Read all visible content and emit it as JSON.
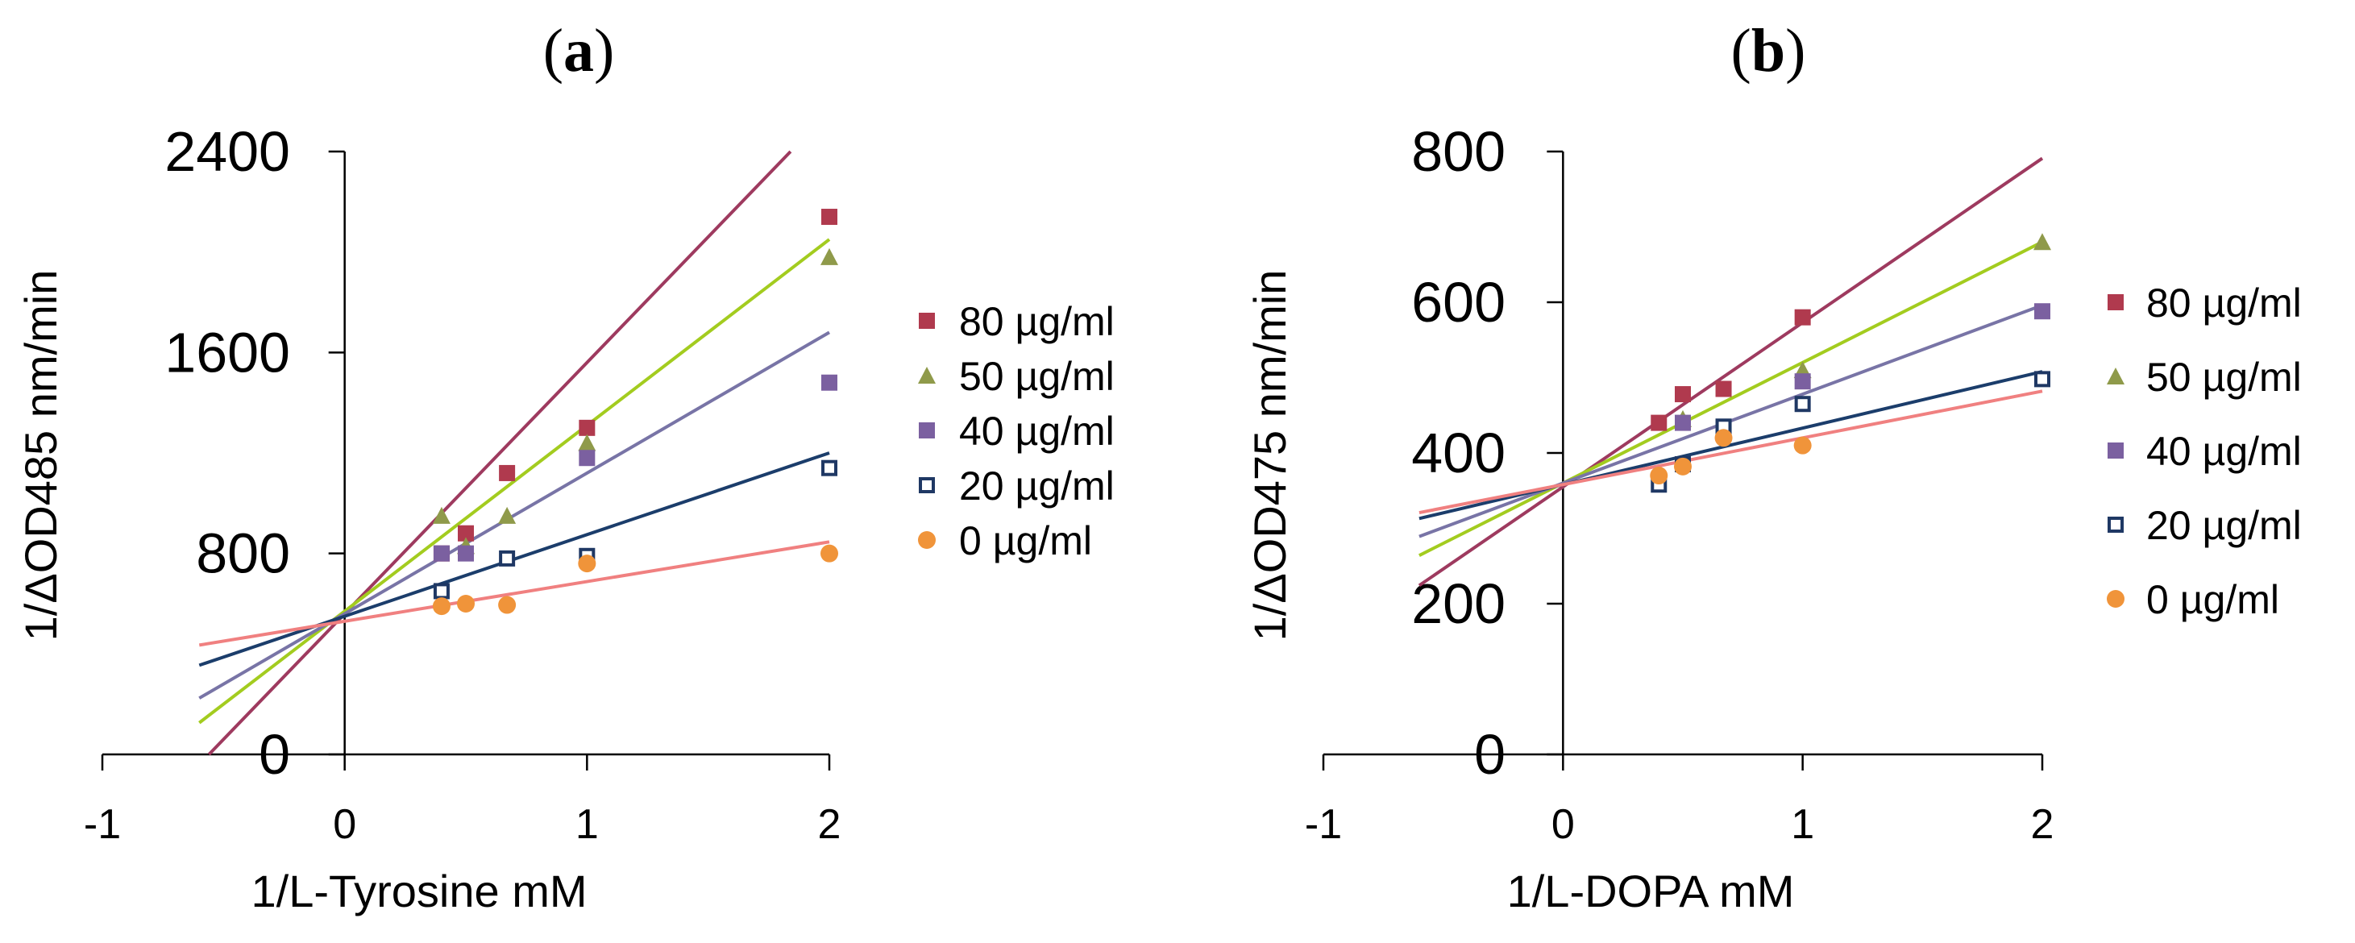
{
  "chart_data": [
    {
      "id": "a",
      "type": "scatter",
      "panel_label": "a",
      "title_open": "(",
      "title_close": ")",
      "xlabel": "1/L-Tyrosine mM",
      "ylabel": "1/ΔOD485 nm/min",
      "xlim": [
        -1,
        2
      ],
      "ylim": [
        0,
        2400
      ],
      "xticks": [
        -1,
        0,
        1,
        2
      ],
      "yticks": [
        0,
        800,
        1600,
        2400
      ],
      "xtick_labels": [
        "-1",
        "0",
        "1",
        "2"
      ],
      "ytick_labels": [
        "0",
        "800",
        "1600",
        "2400"
      ],
      "legend_position": "right",
      "series": [
        {
          "name": "80 µg/ml",
          "marker": "square-filled",
          "color": "#b03a4e",
          "x": [
            0.4,
            0.5,
            0.67,
            1,
            2
          ],
          "y": [
            800,
            880,
            1120,
            1300,
            2140
          ],
          "fit": {
            "slope": 1000,
            "intercept": 560,
            "x_range": [
              -0.58,
              2
            ]
          }
        },
        {
          "name": "50 µg/ml",
          "marker": "triangle-filled",
          "color": "#8f9a4a",
          "x": [
            0.4,
            0.5,
            0.67,
            1,
            2
          ],
          "y": [
            950,
            830,
            950,
            1240,
            1980
          ],
          "fit": {
            "slope": 740,
            "intercept": 570,
            "x_range": [
              -0.6,
              2
            ]
          }
        },
        {
          "name": "40 µg/ml",
          "marker": "square-filled",
          "color": "#7b60a0",
          "x": [
            0.4,
            0.5,
            1,
            2
          ],
          "y": [
            800,
            800,
            1180,
            1480
          ],
          "fit": {
            "slope": 560,
            "intercept": 560,
            "x_range": [
              -0.6,
              2
            ]
          }
        },
        {
          "name": "20 µg/ml",
          "marker": "square-open",
          "color": "#1f3864",
          "x": [
            0.4,
            0.67,
            1,
            2
          ],
          "y": [
            650,
            780,
            790,
            1140
          ],
          "fit": {
            "slope": 325,
            "intercept": 550,
            "x_range": [
              -0.6,
              2
            ]
          }
        },
        {
          "name": "0 µg/ml",
          "marker": "circle-filled",
          "color": "#f0943a",
          "x": [
            0.4,
            0.5,
            0.67,
            1,
            2
          ],
          "y": [
            590,
            600,
            595,
            760,
            800
          ],
          "fit": {
            "slope": 158,
            "intercept": 530,
            "x_range": [
              -0.6,
              2
            ]
          }
        }
      ],
      "fit_line_colors": [
        "#9e3a5f",
        "#a3cc1f",
        "#7874a6",
        "#1b3d6b",
        "#f08080"
      ]
    },
    {
      "id": "b",
      "type": "scatter",
      "panel_label": "b",
      "title_open": "(",
      "title_close": ")",
      "xlabel": "1/L-DOPA mM",
      "ylabel": "1/ΔOD475 nm/min",
      "xlim": [
        -1,
        2
      ],
      "ylim": [
        0,
        800
      ],
      "xticks": [
        -1,
        0,
        1,
        2
      ],
      "yticks": [
        0,
        200,
        400,
        600,
        800
      ],
      "xtick_labels": [
        "-1",
        "0",
        "1",
        "2"
      ],
      "ytick_labels": [
        "0",
        "200",
        "400",
        "600",
        "800"
      ],
      "legend_position": "right",
      "series": [
        {
          "name": "80 µg/ml",
          "marker": "square-filled",
          "color": "#b03a4e",
          "x": [
            0.4,
            0.5,
            0.67,
            1
          ],
          "y": [
            440,
            478,
            485,
            580
          ],
          "fit": {
            "slope": 218,
            "intercept": 355,
            "x_range": [
              -0.6,
              2
            ]
          }
        },
        {
          "name": "50 µg/ml",
          "marker": "triangle-filled",
          "color": "#8f9a4a",
          "x": [
            0.5,
            1,
            2
          ],
          "y": [
            445,
            510,
            680
          ],
          "fit": {
            "slope": 160,
            "intercept": 360,
            "x_range": [
              -0.6,
              2
            ]
          }
        },
        {
          "name": "40 µg/ml",
          "marker": "square-filled",
          "color": "#7b60a0",
          "x": [
            0.5,
            1,
            2
          ],
          "y": [
            440,
            495,
            588
          ],
          "fit": {
            "slope": 118,
            "intercept": 360,
            "x_range": [
              -0.6,
              2
            ]
          }
        },
        {
          "name": "20 µg/ml",
          "marker": "square-open",
          "color": "#1f3864",
          "x": [
            0.4,
            0.5,
            0.67,
            1,
            2
          ],
          "y": [
            358,
            385,
            435,
            465,
            498
          ],
          "fit": {
            "slope": 75,
            "intercept": 358,
            "x_range": [
              -0.6,
              2
            ]
          }
        },
        {
          "name": "0 µg/ml",
          "marker": "circle-filled",
          "color": "#f0943a",
          "x": [
            0.4,
            0.5,
            0.67,
            1
          ],
          "y": [
            370,
            382,
            420,
            410
          ],
          "fit": {
            "slope": 62,
            "intercept": 358,
            "x_range": [
              -0.6,
              2
            ]
          }
        }
      ],
      "fit_line_colors": [
        "#9e3a5f",
        "#a3cc1f",
        "#7874a6",
        "#1b3d6b",
        "#f08080"
      ]
    }
  ]
}
